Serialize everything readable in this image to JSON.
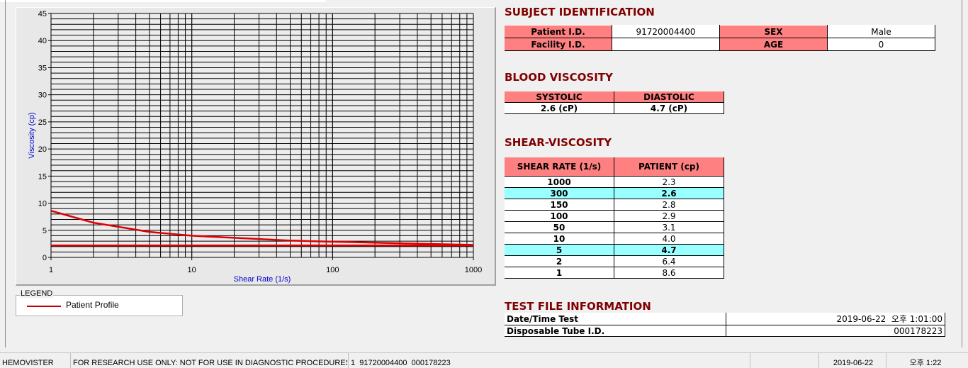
{
  "subject": {
    "title": "SUBJECT IDENTIFICATION",
    "patient_id_label": "Patient I.D.",
    "patient_id": "91720004400",
    "sex_label": "SEX",
    "sex": "Male",
    "facility_id_label": "Facility I.D.",
    "facility_id": "",
    "age_label": "AGE",
    "age": "0"
  },
  "blood": {
    "title": "BLOOD VISCOSITY",
    "systolic_label": "SYSTOLIC",
    "diastolic_label": "DIASTOLIC",
    "systolic": "2.6 (cP)",
    "diastolic": "4.7 (cP)"
  },
  "shear": {
    "title": "SHEAR-VISCOSITY",
    "col_rate": "SHEAR RATE (1/s)",
    "col_patient": "PATIENT (cp)",
    "rows": [
      {
        "rate": "1000",
        "value": "2.3",
        "highlight": false
      },
      {
        "rate": "300",
        "value": "2.6",
        "highlight": true
      },
      {
        "rate": "150",
        "value": "2.8",
        "highlight": false
      },
      {
        "rate": "100",
        "value": "2.9",
        "highlight": false
      },
      {
        "rate": "50",
        "value": "3.1",
        "highlight": false
      },
      {
        "rate": "10",
        "value": "4.0",
        "highlight": false
      },
      {
        "rate": "5",
        "value": "4.7",
        "highlight": true
      },
      {
        "rate": "2",
        "value": "6.4",
        "highlight": false
      },
      {
        "rate": "1",
        "value": "8.6",
        "highlight": false
      }
    ],
    "highlight_color": "#99ffff"
  },
  "testfile": {
    "title": "TEST FILE INFORMATION",
    "datetime_label": "Date/Time Test",
    "datetime": "2019-06-22  오후 1:01:00",
    "tube_label": "Disposable Tube I.D.",
    "tube": "000178223"
  },
  "legend": {
    "title": "LEGEND",
    "label": "Patient Profile"
  },
  "status": {
    "app": "HEMOVISTER",
    "notice": "FOR RESEARCH USE ONLY: NOT FOR USE IN DIAGNOSTIC PROCEDURES",
    "record": "1  91720004400  000178223",
    "blank": "",
    "date": "2019-06-22",
    "time": "오후 1:22"
  },
  "colors": {
    "header_pink": "#ff8080",
    "title": "#800000",
    "series": "#dd0000",
    "axis_label": "#0000cc"
  },
  "chart_data": {
    "type": "line",
    "xlabel": "Shear Rate (1/s)",
    "ylabel": "Viscosity (cp)",
    "xscale": "log",
    "xlim": [
      1,
      1000
    ],
    "ylim": [
      0,
      45
    ],
    "xticks": [
      "1",
      "10",
      "100",
      "1000"
    ],
    "yticks": [
      "0",
      "5",
      "10",
      "15",
      "20",
      "25",
      "30",
      "35",
      "40",
      "45"
    ],
    "grid": true,
    "series": [
      {
        "name": "Patient Profile",
        "x": [
          1,
          2,
          5,
          10,
          50,
          100,
          150,
          300,
          1000
        ],
        "y": [
          8.6,
          6.4,
          4.7,
          4.0,
          3.1,
          2.9,
          2.8,
          2.6,
          2.3
        ]
      },
      {
        "x": [
          1,
          1000
        ],
        "y": [
          2.2,
          2.2
        ]
      }
    ]
  }
}
